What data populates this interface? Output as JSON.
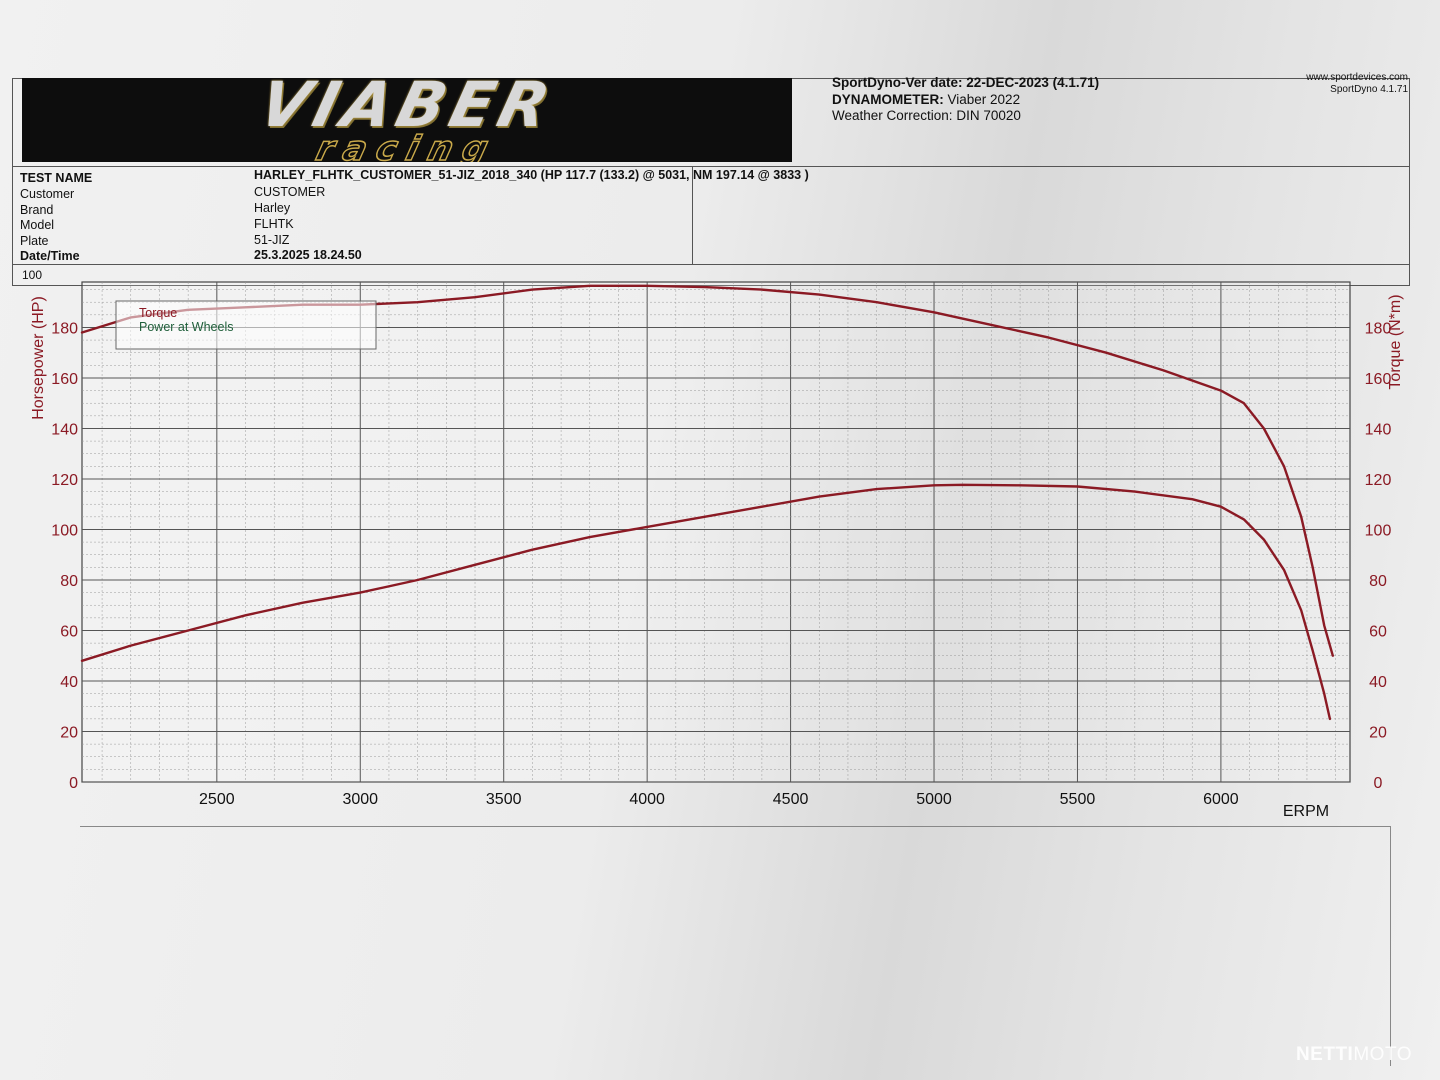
{
  "header": {
    "software_label": "SportDyno-Ver date:",
    "software_value": "22-DEC-2023 (4.1.71)",
    "dyno_label": "DYNAMOMETER:",
    "dyno_value": "Viaber 2022",
    "weather_label": "Weather Correction:",
    "weather_value": "DIN 70020",
    "site": "www.sportdevices.com",
    "version": "SportDyno 4.1.71",
    "logo_main": "VIABER",
    "logo_sub": "racing"
  },
  "test": {
    "name_label": "TEST NAME",
    "name_value": "HARLEY_FLHTK_CUSTOMER_51-JIZ_2018_340 (HP 117.7 (133.2) @ 5031, NM 197.14 @ 3833 )",
    "customer_label": "Customer",
    "customer_value": "CUSTOMER",
    "brand_label": "Brand",
    "brand_value": "Harley",
    "model_label": "Model",
    "model_value": "FLHTK",
    "plate_label": "Plate",
    "plate_value": "51-JIZ",
    "date_label": "Date/Time",
    "date_value": "25.3.2025 18.24.50",
    "scale_top": "100"
  },
  "chart_data": {
    "type": "line",
    "xlabel": "ERPM",
    "ylabel_left": "Horsepower (HP)",
    "ylabel_right": "Torque (N*m)",
    "xlim": [
      2030,
      6450
    ],
    "ylim_left": [
      0,
      198
    ],
    "ylim_right": [
      0,
      198
    ],
    "x_ticks": [
      2500,
      3000,
      3500,
      4000,
      4500,
      5000,
      5500,
      6000
    ],
    "y_ticks_left": [
      0,
      20,
      40,
      60,
      80,
      100,
      120,
      140,
      160,
      180
    ],
    "y_ticks_right": [
      0,
      20,
      40,
      60,
      80,
      100,
      120,
      140,
      160,
      180
    ],
    "grid": true,
    "legend": [
      "Torque",
      "Power at Wheels"
    ],
    "legend_position": "top-left",
    "series": [
      {
        "name": "Torque",
        "color": "#8b1a24",
        "x": [
          2030,
          2200,
          2400,
          2600,
          2800,
          3000,
          3200,
          3400,
          3600,
          3800,
          4000,
          4200,
          4400,
          4600,
          4800,
          5000,
          5200,
          5400,
          5600,
          5800,
          6000,
          6080,
          6150,
          6220,
          6280,
          6320,
          6360,
          6390
        ],
        "values": [
          178,
          184,
          187,
          188,
          189,
          189,
          190,
          192,
          195,
          196.5,
          196.5,
          196,
          195,
          193,
          190,
          186,
          181,
          176,
          170,
          163,
          155,
          150,
          140,
          125,
          105,
          85,
          62,
          50
        ]
      },
      {
        "name": "Power at Wheels",
        "color": "#8b1a24",
        "x": [
          2030,
          2200,
          2400,
          2600,
          2800,
          3000,
          3200,
          3400,
          3600,
          3800,
          4000,
          4200,
          4400,
          4600,
          4800,
          5000,
          5100,
          5300,
          5500,
          5700,
          5900,
          6000,
          6080,
          6150,
          6220,
          6280,
          6320,
          6360,
          6380
        ],
        "values": [
          48,
          54,
          60,
          66,
          71,
          75,
          80,
          86,
          92,
          97,
          101,
          105,
          109,
          113,
          116,
          117.5,
          117.7,
          117.5,
          117,
          115,
          112,
          109,
          104,
          96,
          84,
          68,
          52,
          35,
          25
        ]
      }
    ]
  },
  "watermark": {
    "part1": "NETTI",
    "part2": "MOTO"
  }
}
